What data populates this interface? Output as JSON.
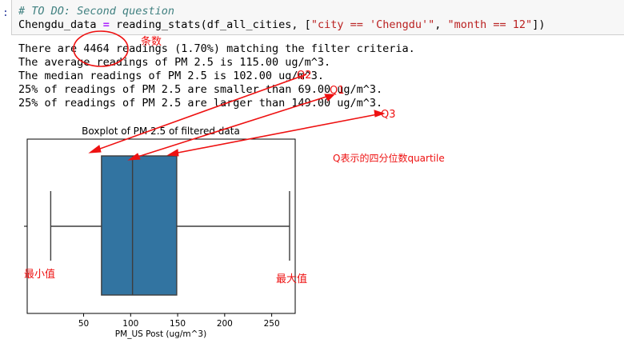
{
  "cell": {
    "prompt": ":",
    "comment": "# TO DO: Second question",
    "var_name": "Chengdu_data",
    "assign_op": "=",
    "call_prefix": "reading_stats(df_all_cities, [",
    "arg1": "\"city == 'Chengdu'\"",
    "sep": ", ",
    "arg2": "\"month == 12\"",
    "call_suffix": "])"
  },
  "output": {
    "lines": [
      "There are 4464 readings (1.70%) matching the filter criteria.",
      "The average readings of PM 2.5 is 115.00 ug/m^3.",
      "The median readings of PM 2.5 is 102.00 ug/m^3.",
      "25% of readings of PM 2.5 are smaller than 69.00 ug/m^3.",
      "25% of readings of PM 2.5 are larger than 149.00 ug/m^3."
    ]
  },
  "chart_data": {
    "type": "box",
    "title": "Boxplot of PM 2.5 of filtered data",
    "xlabel": "PM_US Post (ug/m^3)",
    "ylabel": "",
    "xlim": [
      -10,
      275
    ],
    "x_ticks": [
      50,
      100,
      150,
      200,
      250
    ],
    "grid": false,
    "whisker_low": 15,
    "q1": 69,
    "median": 102,
    "q3": 149,
    "whisker_high": 269,
    "box_color": "#3274a1",
    "line_color": "#3d3d3d"
  },
  "annotations": {
    "color": "#ee1111",
    "count_label": "条数",
    "q1_label": "Q1",
    "q2_label": "Q2",
    "q3_label": "Q3",
    "quartile_note": "Q表示的四分位数quartile",
    "min_label": "最小值",
    "max_label": "最大值"
  }
}
